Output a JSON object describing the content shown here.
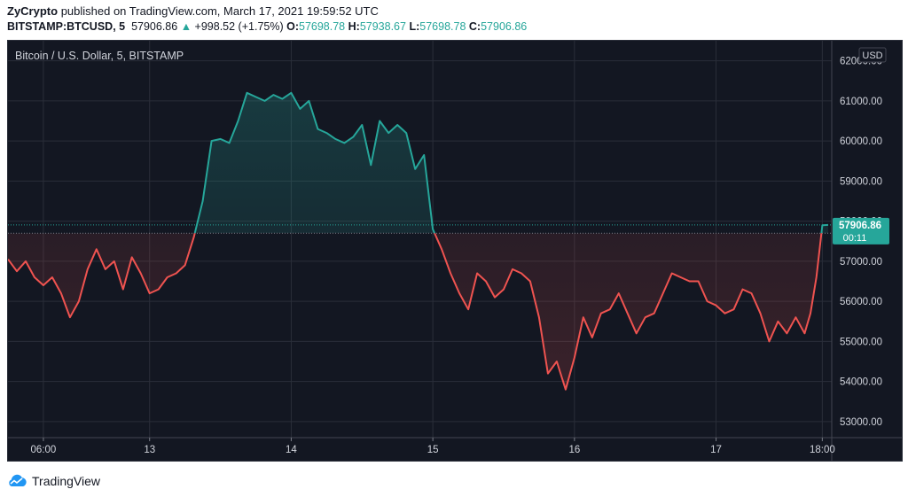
{
  "header": {
    "publisher": "ZyCrypto",
    "published_text": "published on TradingView.com, March 17, 2021 19:59:52 UTC",
    "symbol": "BITSTAMP:BTCUSD, 5",
    "price": "57906.86",
    "change": "+998.52 (+1.75%)",
    "o_label": "O:",
    "o_value": "57698.78",
    "h_label": "H:",
    "h_value": "57938.67",
    "l_label": "L:",
    "l_value": "57698.78",
    "c_label": "C:",
    "c_value": "57906.86"
  },
  "footer": {
    "brand": "TradingView"
  },
  "colors": {
    "up": "#26a69a",
    "down": "#ef5350",
    "background": "#131722",
    "grid": "#2a2e39",
    "axis_text": "#d1d4dc"
  },
  "chart_data": {
    "type": "area",
    "title": "Bitcoin / U.S. Dollar, 5, BITSTAMP",
    "currency": "USD",
    "baseline": 57698.78,
    "ylim": [
      52600,
      62500
    ],
    "y_ticks": [
      "62000.00",
      "61000.00",
      "60000.00",
      "59000.00",
      "58000.00",
      "57000.00",
      "56000.00",
      "55000.00",
      "54000.00",
      "53000.00"
    ],
    "x_ticks": [
      "06:00",
      "13",
      "14",
      "15",
      "16",
      "17",
      "18:00"
    ],
    "last_price_label": "57906.86",
    "countdown_label": "00:11",
    "x_unit": "hours since Mar 12 00:00 UTC",
    "xlim": [
      0,
      139.6
    ],
    "x_tick_positions": [
      6,
      24,
      48,
      72,
      96,
      120,
      138
    ],
    "x": [
      0,
      1.5,
      3,
      4.5,
      6,
      7.5,
      9,
      10.5,
      12,
      13.5,
      15,
      16.5,
      18,
      19.5,
      21,
      22.5,
      24,
      25.5,
      27,
      28.5,
      30,
      31.5,
      33,
      34.5,
      36,
      37.5,
      39,
      40.5,
      42,
      43.5,
      45,
      46.5,
      48,
      49.5,
      51,
      52.5,
      54,
      55.5,
      57,
      58.5,
      60,
      61.5,
      63,
      64.5,
      66,
      67.5,
      69,
      70.5,
      72,
      73.5,
      75,
      76.5,
      78,
      79.5,
      81,
      82.5,
      84,
      85.5,
      87,
      88.5,
      90,
      91.5,
      93,
      94.5,
      96,
      97.5,
      99,
      100.5,
      102,
      103.5,
      105,
      106.5,
      108,
      109.5,
      111,
      112.5,
      114,
      115.5,
      117,
      118.5,
      120,
      121.5,
      123,
      124.5,
      126,
      127.5,
      129,
      130.5,
      132,
      133.5,
      135,
      136,
      137,
      138,
      139
    ],
    "y": [
      57050,
      56750,
      57000,
      56600,
      56400,
      56600,
      56200,
      55600,
      56000,
      56800,
      57300,
      56800,
      57000,
      56300,
      57100,
      56700,
      56200,
      56300,
      56600,
      56700,
      56900,
      57600,
      58500,
      60000,
      60050,
      59950,
      60500,
      61200,
      61100,
      61000,
      61150,
      61050,
      61200,
      60800,
      61000,
      60300,
      60200,
      60050,
      59950,
      60100,
      60400,
      59400,
      60500,
      60200,
      60400,
      60200,
      59300,
      59650,
      57800,
      57300,
      56700,
      56200,
      55800,
      56700,
      56500,
      56100,
      56300,
      56800,
      56700,
      56500,
      55600,
      54200,
      54500,
      53800,
      54600,
      55600,
      55100,
      55700,
      55800,
      56200,
      55700,
      55200,
      55600,
      55700,
      56200,
      56700,
      56600,
      56500,
      56500,
      56000,
      55900,
      55700,
      55800,
      56300,
      56200,
      55700,
      55000,
      55500,
      55200,
      55600,
      55200,
      55700,
      56600,
      57900,
      57906.86
    ]
  }
}
